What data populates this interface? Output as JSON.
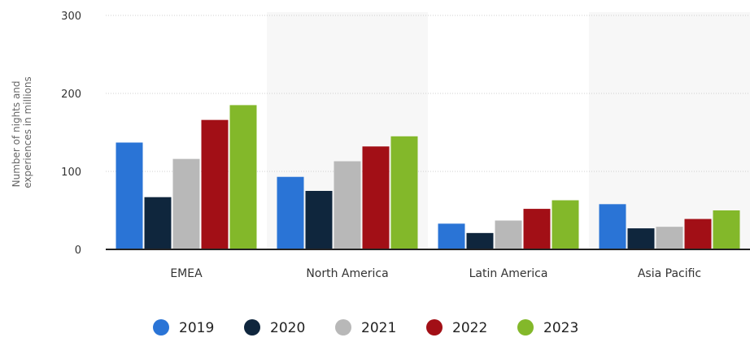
{
  "chart_data": {
    "type": "bar",
    "categories": [
      "EMEA",
      "North America",
      "Latin America",
      "Asia Pacific"
    ],
    "series": [
      {
        "name": "2019",
        "color": "#2a74d6",
        "values": [
          137,
          93,
          33,
          58
        ]
      },
      {
        "name": "2020",
        "color": "#0f263d",
        "values": [
          67,
          75,
          21,
          27
        ]
      },
      {
        "name": "2021",
        "color": "#b8b8b8",
        "values": [
          116,
          113,
          37,
          29
        ]
      },
      {
        "name": "2022",
        "color": "#a20f16",
        "values": [
          166,
          132,
          52,
          39
        ]
      },
      {
        "name": "2023",
        "color": "#83b82a",
        "values": [
          185,
          145,
          63,
          50
        ]
      }
    ],
    "ylabel_lines": [
      "Number of nights and",
      "experiences in millions"
    ],
    "yticks": [
      0,
      100,
      200,
      300
    ],
    "ylim": [
      0,
      300
    ],
    "grid": true,
    "legend_position": "bottom"
  }
}
